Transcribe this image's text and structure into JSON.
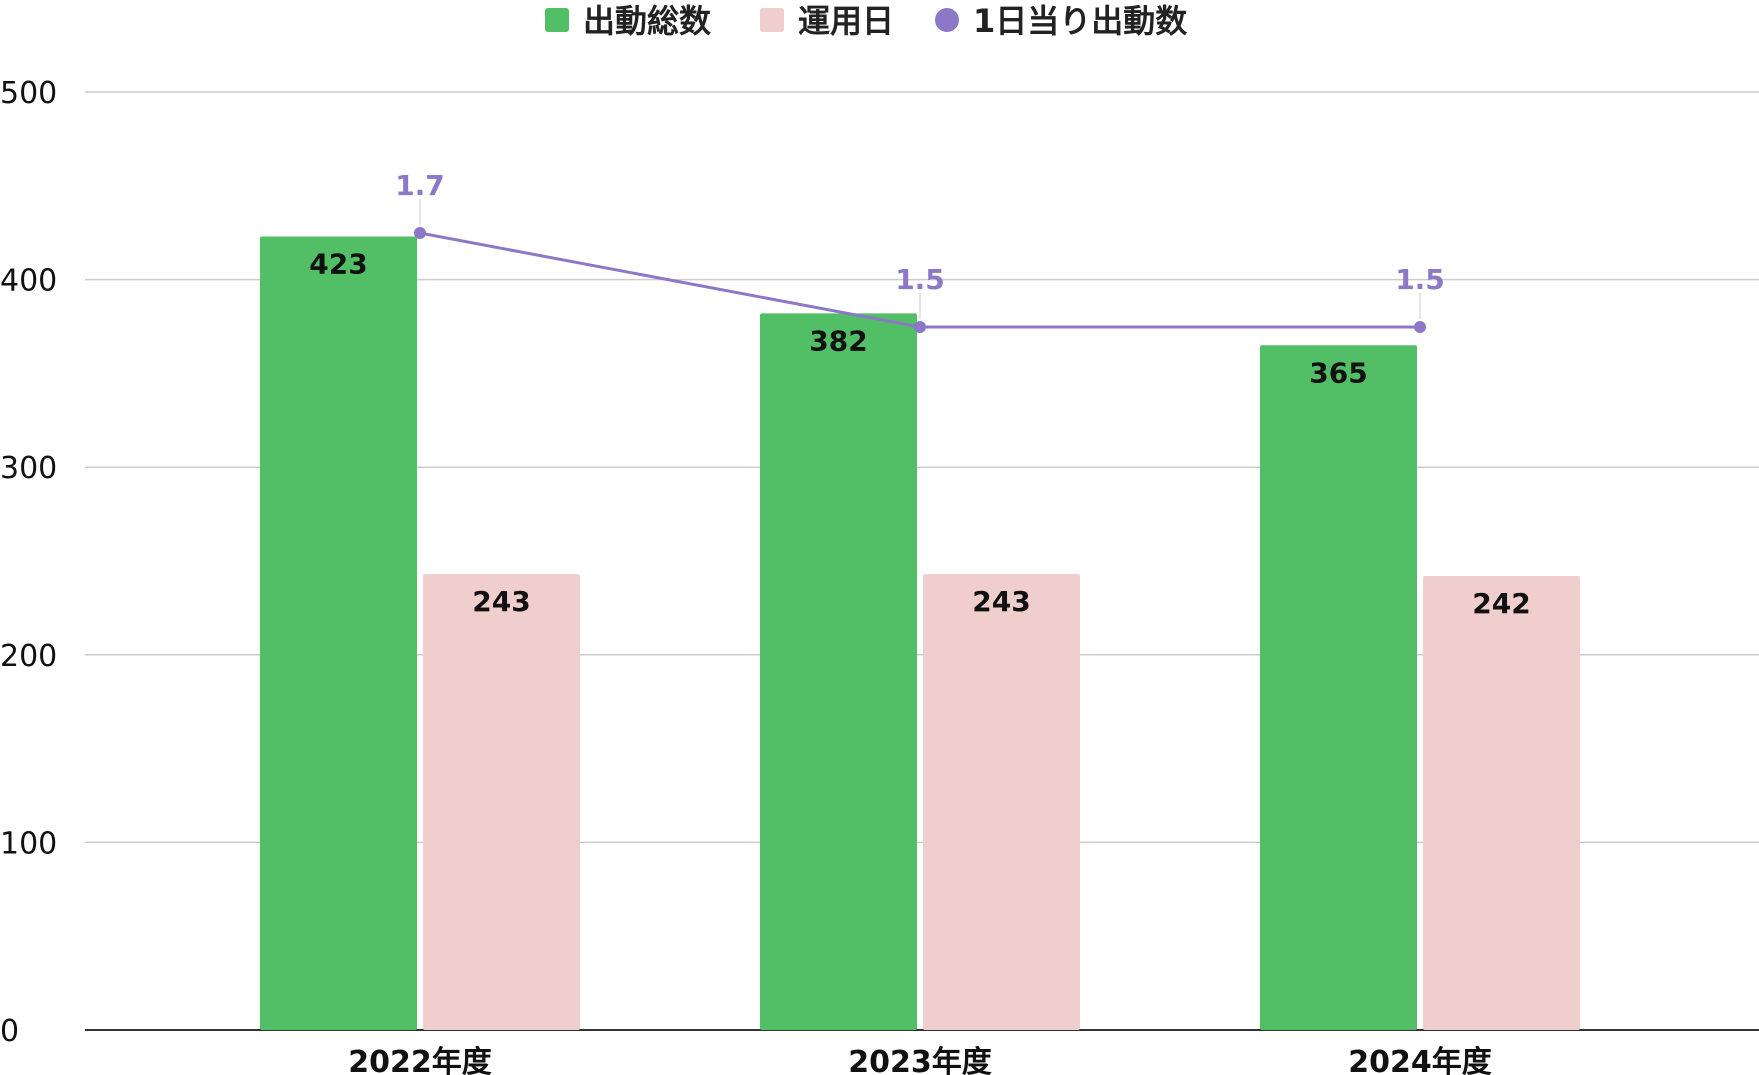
{
  "chart_data": {
    "type": "bar",
    "categories": [
      "2022年度",
      "2023年度",
      "2024年度"
    ],
    "series": [
      {
        "name": "出動総数",
        "type": "bar",
        "values": [
          423,
          382,
          365
        ],
        "color": "#52bf66"
      },
      {
        "name": "運用日",
        "type": "bar",
        "values": [
          243,
          243,
          242
        ],
        "color": "#f0cece"
      },
      {
        "name": "1日当り出動数",
        "type": "line",
        "values": [
          1.7,
          1.5,
          1.5
        ],
        "value_labels": [
          "1.7",
          "1.5",
          "1.5"
        ],
        "color": "#8c78c6"
      }
    ],
    "ylim": [
      0,
      500
    ],
    "yticks": [
      "0",
      "100",
      "200",
      "300",
      "400",
      "500"
    ],
    "grid": true,
    "legend_position": "top-center"
  }
}
